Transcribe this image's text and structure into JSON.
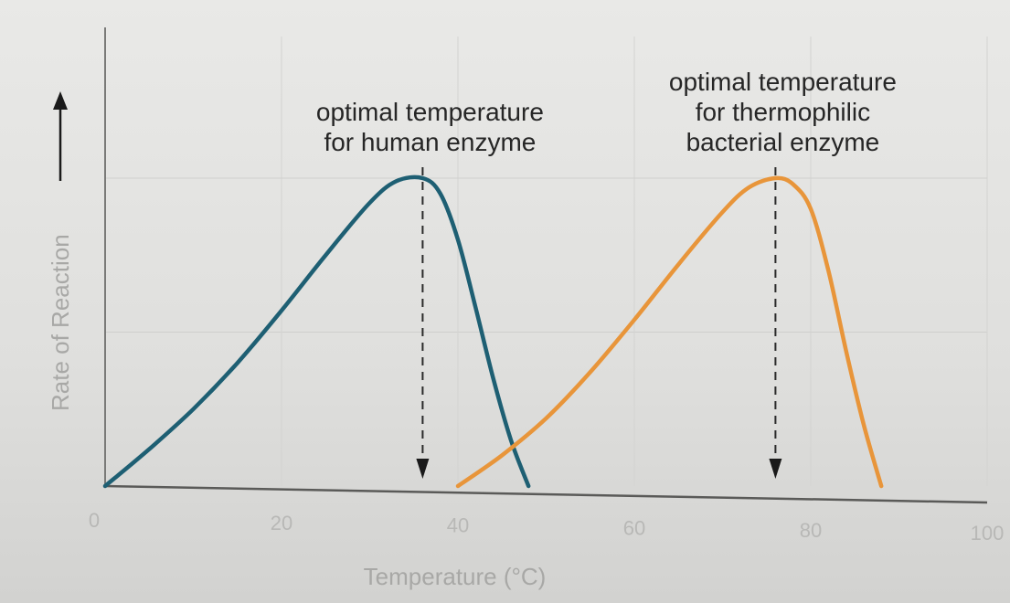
{
  "chart_data": {
    "type": "line",
    "title": "",
    "xlabel": "Temperature (°C)",
    "ylabel": "Rate of Reaction",
    "xlim": [
      0,
      100
    ],
    "ylim": [
      0,
      1
    ],
    "xticks": [
      "0",
      "20",
      "40",
      "60",
      "80",
      "100"
    ],
    "grid": true,
    "legend": "none",
    "series": [
      {
        "color": "#1e5f73",
        "x": [
          0,
          5,
          10,
          15,
          20,
          25,
          30,
          33,
          36,
          38,
          40,
          42,
          44,
          46,
          48
        ],
        "y": [
          0,
          0.12,
          0.25,
          0.4,
          0.57,
          0.75,
          0.92,
          0.99,
          1.0,
          0.95,
          0.8,
          0.58,
          0.35,
          0.15,
          0
        ]
      },
      {
        "color": "#e8953a",
        "x": [
          40,
          45,
          50,
          55,
          60,
          65,
          70,
          73,
          76,
          78,
          80,
          82,
          84,
          86,
          88
        ],
        "y": [
          0,
          0.1,
          0.22,
          0.37,
          0.54,
          0.72,
          0.89,
          0.97,
          1.0,
          0.98,
          0.9,
          0.7,
          0.44,
          0.2,
          0
        ]
      }
    ],
    "annotations": [
      {
        "lines": [
          "optimal temperature",
          "for human enzyme"
        ],
        "x": 36
      },
      {
        "lines": [
          "optimal temperature",
          "for thermophilic",
          "bacterial enzyme"
        ],
        "x": 76
      }
    ]
  }
}
